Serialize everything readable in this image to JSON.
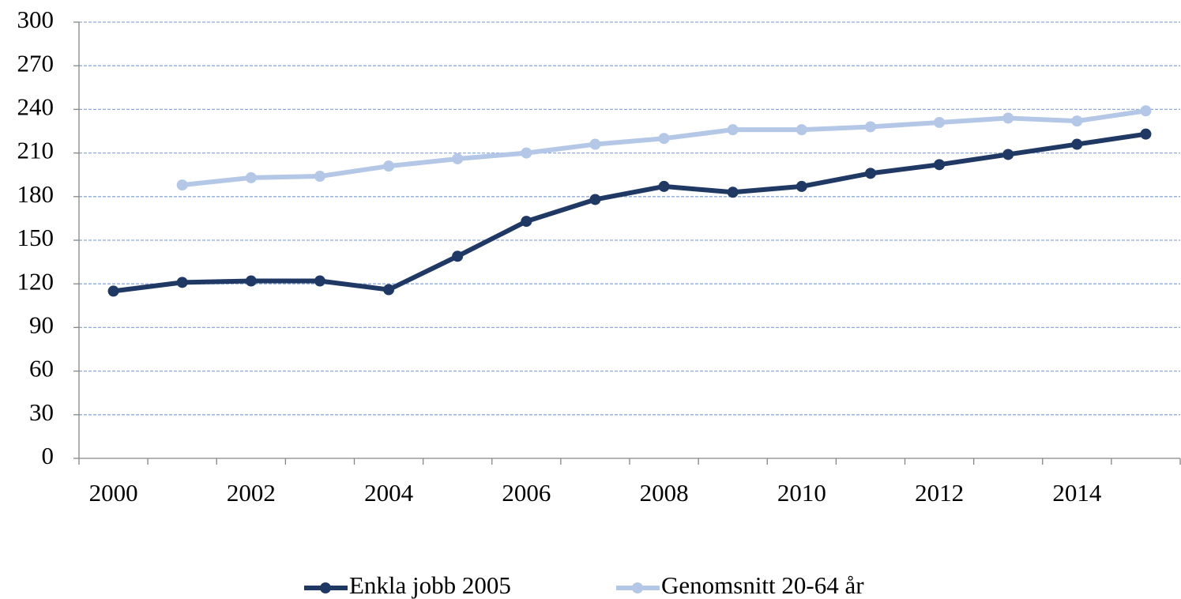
{
  "chart_data": {
    "type": "line",
    "categories": [
      "2000",
      null,
      "2002",
      null,
      "2004",
      null,
      "2006",
      null,
      "2008",
      null,
      "2010",
      null,
      "2012",
      null,
      "2014",
      null
    ],
    "series": [
      {
        "name": "Enkla jobb 2005",
        "color": "#203864",
        "values": [
          115,
          121,
          122,
          122,
          116,
          139,
          163,
          178,
          187,
          183,
          187,
          196,
          202,
          209,
          216,
          223
        ]
      },
      {
        "name": "Genomsnitt 20-64 år",
        "color": "#b4c7e7",
        "values": [
          null,
          188,
          193,
          194,
          201,
          206,
          210,
          216,
          220,
          226,
          226,
          228,
          231,
          234,
          232,
          239
        ]
      }
    ],
    "ylim": [
      0,
      300
    ],
    "yticks": [
      0,
      30,
      60,
      90,
      120,
      150,
      180,
      210,
      240,
      270,
      300
    ],
    "grid": true,
    "legend": "bottom"
  }
}
